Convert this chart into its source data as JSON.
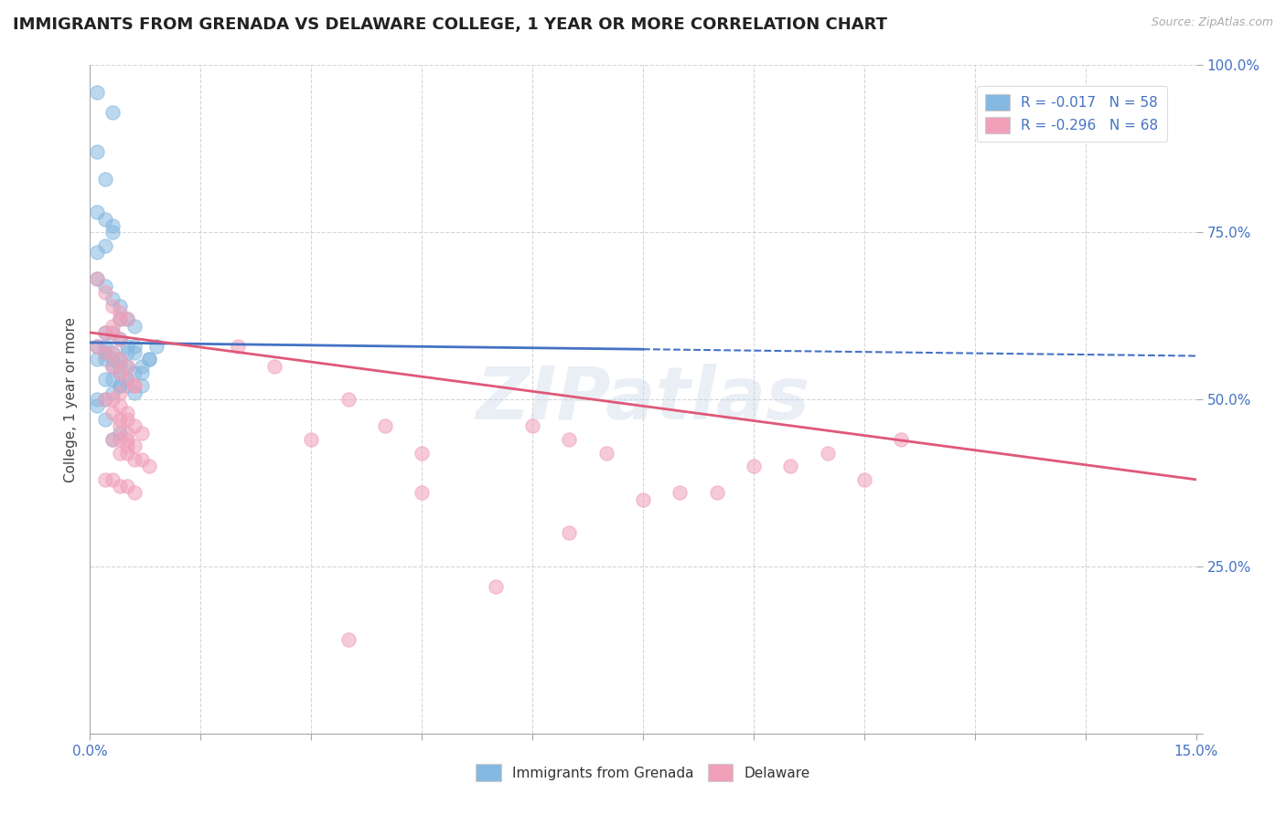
{
  "title": "IMMIGRANTS FROM GRENADA VS DELAWARE COLLEGE, 1 YEAR OR MORE CORRELATION CHART",
  "source_text": "Source: ZipAtlas.com",
  "ylabel": "College, 1 year or more",
  "xlim": [
    0.0,
    0.15
  ],
  "ylim": [
    0.0,
    1.0
  ],
  "xticks": [
    0.0,
    0.015,
    0.03,
    0.045,
    0.06,
    0.075,
    0.09,
    0.105,
    0.12,
    0.135,
    0.15
  ],
  "xticklabels": [
    "0.0%",
    "",
    "",
    "",
    "",
    "",
    "",
    "",
    "",
    "",
    "15.0%"
  ],
  "yticks": [
    0.0,
    0.25,
    0.5,
    0.75,
    1.0
  ],
  "yticklabels": [
    "",
    "25.0%",
    "50.0%",
    "75.0%",
    "100.0%"
  ],
  "legend_r_entries": [
    {
      "label": "R = -0.017   N = 58",
      "facecolor": "#aec6e8"
    },
    {
      "label": "R = -0.296   N = 68",
      "facecolor": "#f4b8c8"
    }
  ],
  "legend_bottom": [
    "Immigrants from Grenada",
    "Delaware"
  ],
  "blue_scatter_x": [
    0.001,
    0.003,
    0.001,
    0.002,
    0.001,
    0.002,
    0.003,
    0.003,
    0.002,
    0.001,
    0.001,
    0.002,
    0.003,
    0.004,
    0.004,
    0.005,
    0.006,
    0.003,
    0.002,
    0.004,
    0.002,
    0.001,
    0.002,
    0.003,
    0.002,
    0.004,
    0.003,
    0.005,
    0.006,
    0.004,
    0.003,
    0.002,
    0.004,
    0.005,
    0.006,
    0.002,
    0.001,
    0.003,
    0.004,
    0.005,
    0.001,
    0.002,
    0.001,
    0.003,
    0.004,
    0.005,
    0.006,
    0.007,
    0.007,
    0.008,
    0.002,
    0.004,
    0.003,
    0.005,
    0.006,
    0.007,
    0.008,
    0.009
  ],
  "blue_scatter_y": [
    0.96,
    0.93,
    0.87,
    0.83,
    0.78,
    0.77,
    0.76,
    0.75,
    0.73,
    0.72,
    0.68,
    0.67,
    0.65,
    0.64,
    0.62,
    0.62,
    0.61,
    0.6,
    0.6,
    0.59,
    0.58,
    0.58,
    0.57,
    0.57,
    0.56,
    0.56,
    0.55,
    0.55,
    0.54,
    0.54,
    0.53,
    0.53,
    0.52,
    0.52,
    0.57,
    0.57,
    0.56,
    0.56,
    0.55,
    0.58,
    0.5,
    0.5,
    0.49,
    0.51,
    0.52,
    0.53,
    0.51,
    0.52,
    0.54,
    0.56,
    0.47,
    0.45,
    0.44,
    0.57,
    0.58,
    0.55,
    0.56,
    0.58
  ],
  "pink_scatter_x": [
    0.001,
    0.002,
    0.003,
    0.004,
    0.004,
    0.005,
    0.003,
    0.002,
    0.003,
    0.004,
    0.001,
    0.002,
    0.003,
    0.004,
    0.005,
    0.003,
    0.004,
    0.005,
    0.006,
    0.004,
    0.002,
    0.003,
    0.004,
    0.005,
    0.003,
    0.004,
    0.005,
    0.006,
    0.007,
    0.005,
    0.003,
    0.004,
    0.005,
    0.006,
    0.004,
    0.005,
    0.006,
    0.007,
    0.008,
    0.006,
    0.002,
    0.003,
    0.004,
    0.005,
    0.006,
    0.004,
    0.005,
    0.02,
    0.025,
    0.03,
    0.035,
    0.04,
    0.045,
    0.06,
    0.065,
    0.07,
    0.08,
    0.09,
    0.1,
    0.11,
    0.055,
    0.065,
    0.075,
    0.085,
    0.095,
    0.105,
    0.035,
    0.045
  ],
  "pink_scatter_y": [
    0.68,
    0.66,
    0.64,
    0.63,
    0.62,
    0.62,
    0.61,
    0.6,
    0.6,
    0.59,
    0.58,
    0.57,
    0.57,
    0.56,
    0.55,
    0.55,
    0.54,
    0.53,
    0.52,
    0.51,
    0.5,
    0.5,
    0.49,
    0.48,
    0.48,
    0.47,
    0.47,
    0.46,
    0.45,
    0.45,
    0.44,
    0.44,
    0.43,
    0.43,
    0.42,
    0.42,
    0.41,
    0.41,
    0.4,
    0.52,
    0.38,
    0.38,
    0.37,
    0.37,
    0.36,
    0.46,
    0.44,
    0.58,
    0.55,
    0.44,
    0.5,
    0.46,
    0.42,
    0.46,
    0.44,
    0.42,
    0.36,
    0.4,
    0.42,
    0.44,
    0.22,
    0.3,
    0.35,
    0.36,
    0.4,
    0.38,
    0.14,
    0.36
  ],
  "blue_line_x": [
    0.0,
    0.15
  ],
  "blue_line_y": [
    0.585,
    0.565
  ],
  "pink_line_x": [
    0.0,
    0.15
  ],
  "pink_line_y": [
    0.6,
    0.38
  ],
  "blue_color": "#85b8e0",
  "pink_color": "#f0a0b8",
  "blue_line_color": "#4472c4",
  "pink_line_color": "#e05878",
  "grid_color": "#cccccc",
  "background_color": "#ffffff",
  "watermark": "ZIPatlas",
  "title_fontsize": 13,
  "axis_label_fontsize": 11,
  "tick_fontsize": 11,
  "legend_fontsize": 11,
  "scatter_size": 120,
  "scatter_alpha": 0.55
}
